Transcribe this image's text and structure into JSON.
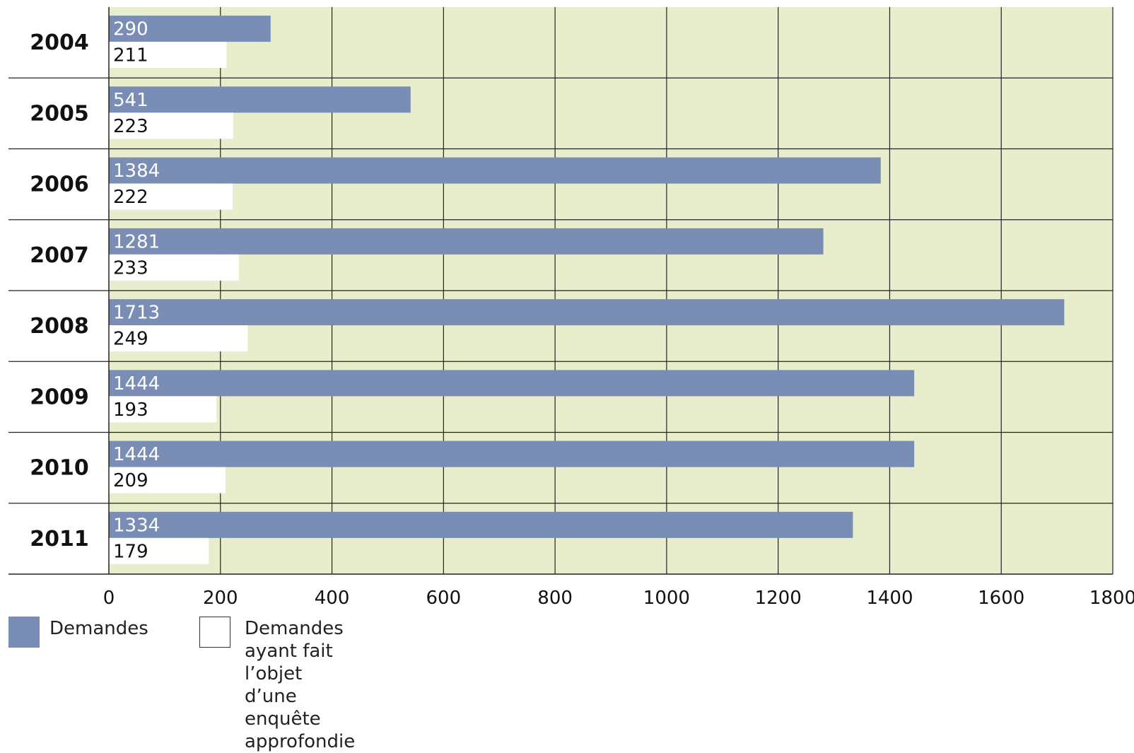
{
  "chart_data": {
    "type": "bar",
    "orientation": "horizontal",
    "title": "",
    "xlabel": "",
    "ylabel": "",
    "categories": [
      "2004",
      "2005",
      "2006",
      "2007",
      "2008",
      "2009",
      "2010",
      "2011"
    ],
    "series": [
      {
        "name": "Demandes",
        "values": [
          290,
          541,
          1384,
          1281,
          1713,
          1444,
          1444,
          1334
        ],
        "color": "#7a8db5"
      },
      {
        "name": "Demandes ayant fait l’objet\nd’une enquête approfondie",
        "values": [
          211,
          223,
          222,
          233,
          249,
          193,
          209,
          179
        ],
        "color": "#ffffff"
      }
    ],
    "xlim": [
      0,
      1800
    ],
    "xticks": [
      0,
      200,
      400,
      600,
      800,
      1000,
      1200,
      1400,
      1600,
      1800
    ],
    "grid": true,
    "plot_background": "#e8edcc",
    "legend_position": "bottom-left",
    "data_labels": "inside-start"
  }
}
